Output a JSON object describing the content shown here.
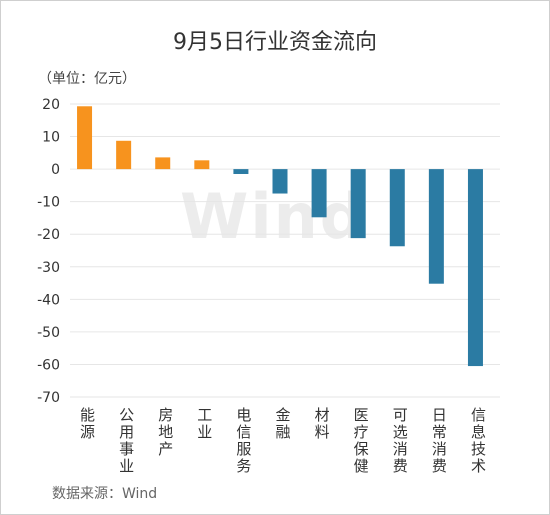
{
  "title": "9月5日行业资金流向",
  "unit_label": "（单位：亿元）",
  "source_label": "数据来源：Wind",
  "watermark": "Wind",
  "colors": {
    "positive": "#F7931E",
    "negative": "#2B7BA3",
    "grid": "#e6e6e6"
  },
  "chart_data": {
    "type": "bar",
    "title": "9月5日行业资金流向",
    "ylabel": "（单位：亿元）",
    "xlabel": "",
    "ylim": [
      -70,
      20
    ],
    "yticks": [
      20,
      10,
      0,
      -10,
      -20,
      -30,
      -40,
      -50,
      -60,
      -70
    ],
    "ytick_labels": [
      "20",
      "10",
      "0",
      "-10",
      "-20",
      "-30",
      "-40",
      "-50",
      "-60",
      "-70"
    ],
    "grid": true,
    "categories": [
      "能源",
      "公用事业",
      "房地产",
      "工业",
      "电信服务",
      "金融",
      "材料",
      "医疗保健",
      "可选消费",
      "日常消费",
      "信息技术"
    ],
    "values": [
      19.3,
      8.7,
      3.6,
      2.7,
      -1.5,
      -7.5,
      -14.8,
      -21.2,
      -23.7,
      -35.2,
      -60.5
    ]
  }
}
